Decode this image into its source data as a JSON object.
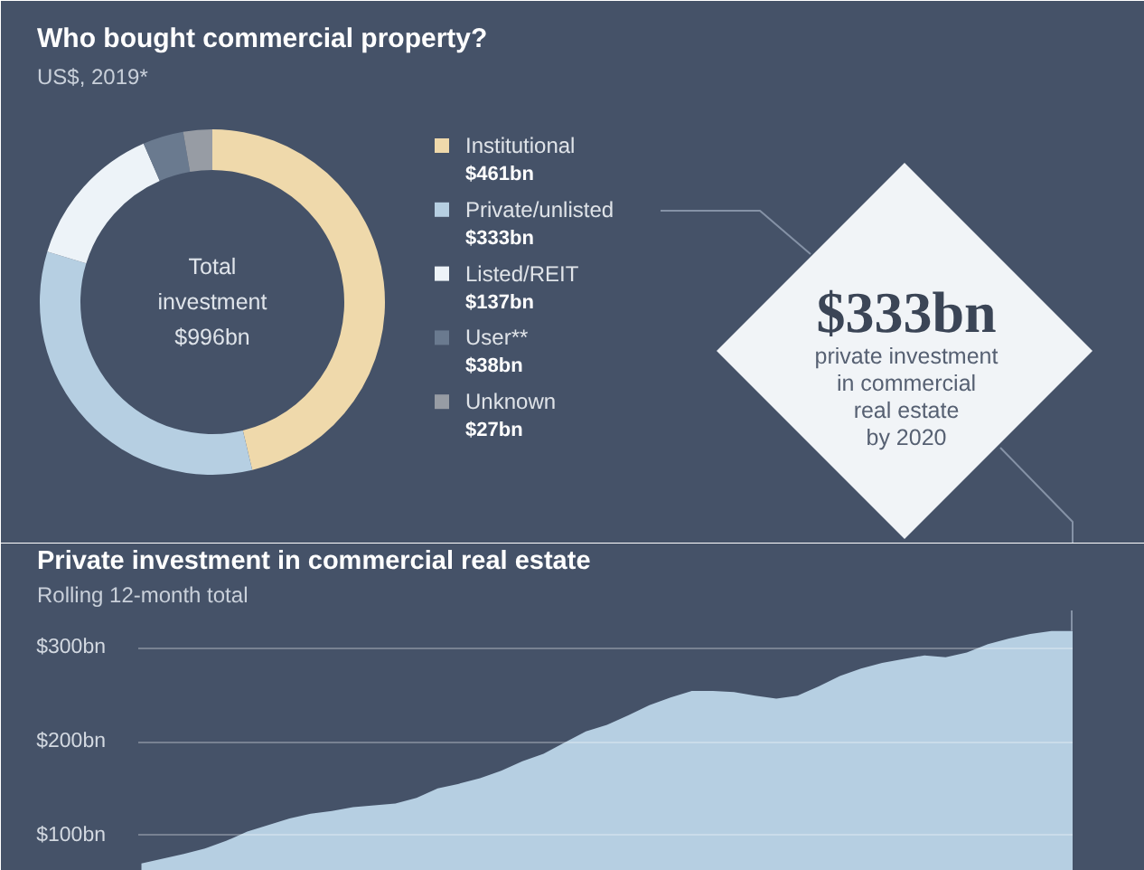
{
  "chart_data": [
    {
      "type": "donut",
      "title": "Who bought commercial property?",
      "subtitle": "US$, 2019*",
      "categories": [
        "Institutional",
        "Private/unlisted",
        "Listed/REIT",
        "User**",
        "Unknown"
      ],
      "values": [
        461,
        333,
        137,
        38,
        27
      ],
      "colors": [
        "#efd9ab",
        "#b6cfe2",
        "#edf3f8",
        "#6a7a8f",
        "#979ca4"
      ],
      "value_labels": [
        "$461bn",
        "$333bn",
        "$137bn",
        "$38bn",
        "$27bn"
      ],
      "legend": "right",
      "annotations": [
        "Total\ninvestment\n$996bn",
        "$333bn\nprivate investment\nin commercial\nreal estate\nby 2020"
      ]
    },
    {
      "type": "area",
      "title": "Private investment in commercial real estate",
      "subtitle": "Rolling 12-month total",
      "categories": [
        null,
        null,
        null,
        null,
        null,
        null,
        null,
        null,
        null,
        null,
        null,
        null,
        null,
        null,
        null,
        null,
        null,
        null,
        null,
        null,
        null,
        null,
        null,
        null,
        null,
        null,
        null,
        null,
        null,
        null,
        null,
        null,
        null,
        null,
        null,
        null,
        null,
        null,
        null,
        null,
        null,
        null,
        null,
        null,
        null
      ],
      "values": [
        70,
        75,
        80,
        86,
        94,
        104,
        111,
        118,
        123,
        126,
        130,
        132,
        134,
        140,
        150,
        155,
        161,
        169,
        179,
        187,
        199,
        211,
        218,
        228,
        239,
        247,
        254,
        254,
        253,
        249,
        246,
        249,
        259,
        270,
        278,
        284,
        288,
        292,
        290,
        295,
        304,
        310,
        315,
        318,
        318
      ],
      "color": "#b6cfe2",
      "ylim": [
        62,
        340
      ],
      "yticks": [
        {
          "value": 100,
          "label": "$100bn"
        },
        {
          "value": 200,
          "label": "$200bn"
        },
        {
          "value": 300,
          "label": "$300bn"
        }
      ],
      "grid": "y",
      "tick_labels": "y"
    }
  ]
}
